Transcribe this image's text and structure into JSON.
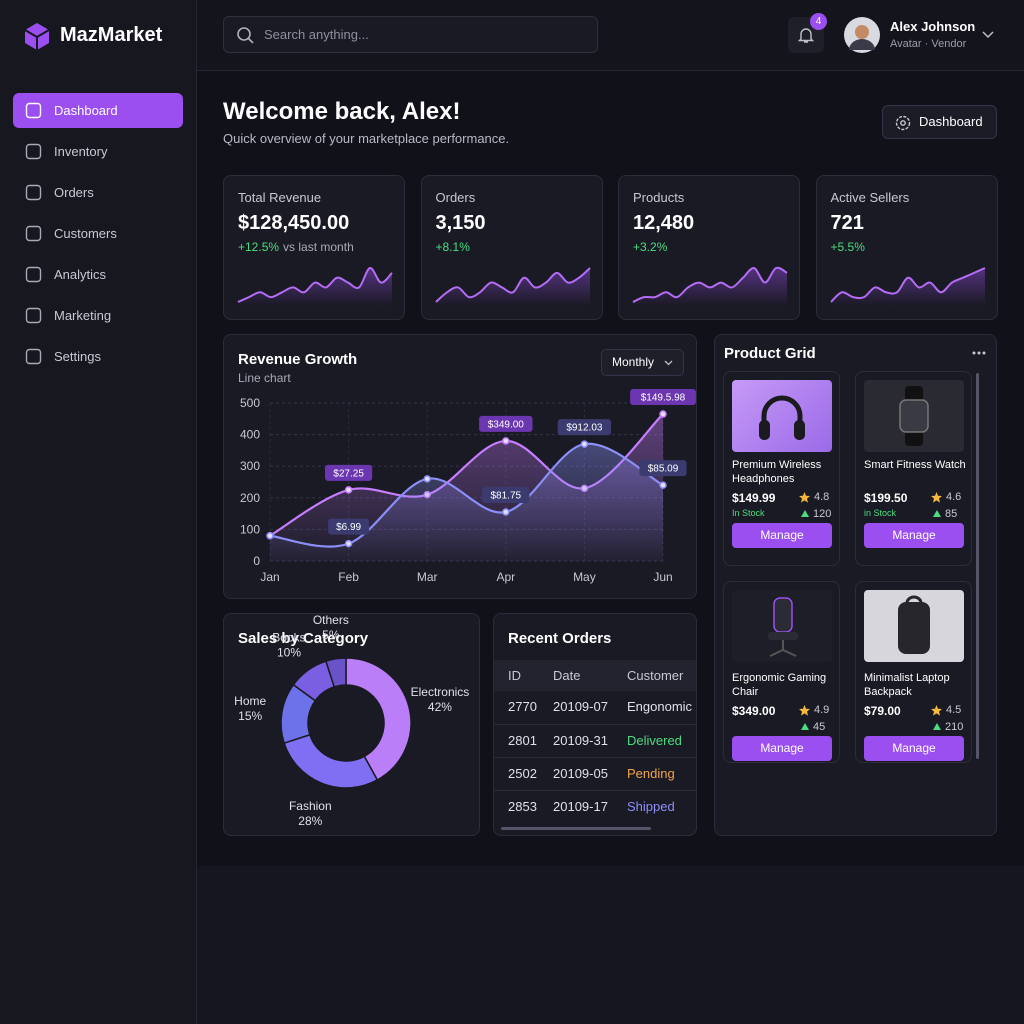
{
  "brand": "MazMarket",
  "nav": [
    "Dashboard",
    "Inventory",
    "Orders",
    "Customers",
    "Analytics",
    "Marketing",
    "Settings"
  ],
  "search": "Search anything...",
  "notifications": 4,
  "user": {
    "name": "Alex Johnson",
    "role": "Avatar · Vendor"
  },
  "page": {
    "title": "Welcome back, Alex!",
    "subtitle": "Quick overview of your marketplace performance.",
    "button": "Dashboard"
  },
  "kpis": [
    {
      "label": "Total Revenue",
      "value": "$128,450.00",
      "change": "+12.5%",
      "note": "vs last month",
      "trend": [
        3,
        4,
        5,
        4,
        5,
        6,
        5,
        7,
        6,
        8,
        7,
        6,
        10,
        7,
        9
      ]
    },
    {
      "label": "Orders",
      "value": "3,150",
      "change": "+8.1%",
      "trend": [
        3,
        5,
        6,
        4,
        5,
        7,
        6,
        5,
        8,
        6,
        7,
        9,
        7,
        8,
        10
      ]
    },
    {
      "label": "Products",
      "value": "12,480",
      "change": "+3.2%",
      "trend": [
        3,
        4,
        4,
        5,
        4,
        6,
        7,
        6,
        7,
        6,
        8,
        10,
        7,
        10,
        9
      ]
    },
    {
      "label": "Active Sellers",
      "value": "721",
      "change": "+5.5%",
      "trend": [
        4,
        6,
        5,
        5,
        7,
        6,
        6,
        9,
        7,
        8,
        6,
        8,
        9,
        10,
        11
      ]
    }
  ],
  "revenue_control": "Monthly",
  "chart_data": [
    {
      "type": "line",
      "title": "Revenue Growth",
      "subtitle": "Line chart",
      "categories": [
        "Jan",
        "Feb",
        "Mar",
        "Apr",
        "May",
        "Jun"
      ],
      "series": [
        {
          "color": "#c77dff",
          "values": [
            80,
            225,
            210,
            380,
            230,
            465
          ]
        },
        {
          "color": "#8b8ff8",
          "values": [
            80,
            55,
            260,
            155,
            370,
            240
          ]
        }
      ],
      "ylim": [
        0,
        500
      ],
      "yticks": [
        0,
        100,
        200,
        300,
        400,
        500
      ],
      "grid": true,
      "annotations": [
        {
          "text": "$27.25",
          "series": 0,
          "index": 1
        },
        {
          "text": "$349.00",
          "series": 0,
          "index": 3
        },
        {
          "text": "$149.5.98",
          "series": 0,
          "index": 5
        },
        {
          "text": "$6.99",
          "series": 1,
          "index": 1
        },
        {
          "text": "$81.75",
          "series": 1,
          "index": 3
        },
        {
          "text": "$912.03",
          "series": 1,
          "index": 4
        },
        {
          "text": "$85.09",
          "series": 1,
          "index": 5
        }
      ]
    },
    {
      "type": "pie",
      "title": "Sales by Category",
      "categories": [
        "Electronics",
        "Fashion",
        "Home",
        "Books",
        "Others"
      ],
      "values": [
        42,
        28,
        15,
        10,
        5
      ],
      "value_labels": [
        "42%",
        "28%",
        "15%",
        "10%",
        "5%"
      ],
      "colors": [
        "#b97ef8",
        "#7f6ff2",
        "#6d72ea",
        "#7a5fe2",
        "#6a52c8"
      ]
    }
  ],
  "orders": {
    "title": "Recent Orders",
    "columns": [
      "ID",
      "Date",
      "Customer"
    ],
    "rows": [
      [
        "2770",
        "20109-07",
        "Engonomic"
      ],
      [
        "2801",
        "20109-31",
        "Delivered"
      ],
      [
        "2502",
        "20109-05",
        "Pending"
      ],
      [
        "2853",
        "20109-17",
        "Shipped"
      ]
    ]
  },
  "products": {
    "title": "Product Grid",
    "items": [
      {
        "name": "Premium Wireless Headphones",
        "price": "$149.99",
        "rating": 4.8,
        "stock": "In Stock",
        "reviews": 120,
        "action": "Manage"
      },
      {
        "name": "Smart Fitness Watch",
        "price": "$199.50",
        "rating": 4.6,
        "stock": "in Stock",
        "reviews": 85,
        "action": "Manage"
      },
      {
        "name": "Ergonomic Gaming Chair",
        "price": "$349.00",
        "rating": 4.9,
        "reviews": 45,
        "action": "Manage"
      },
      {
        "name": "Minimalist Laptop Backpack",
        "price": "$79.00",
        "rating": 4.5,
        "reviews": 210,
        "action": "Manage"
      }
    ]
  }
}
